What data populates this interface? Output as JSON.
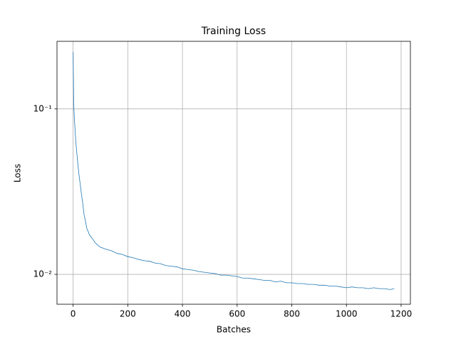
{
  "chart_data": {
    "type": "line",
    "title": "Training Loss",
    "xlabel": "Batches",
    "ylabel": "Loss",
    "x": [
      0,
      2,
      5,
      10,
      15,
      20,
      25,
      30,
      35,
      40,
      45,
      50,
      60,
      70,
      80,
      90,
      100,
      120,
      140,
      160,
      180,
      200,
      220,
      240,
      260,
      280,
      300,
      320,
      340,
      360,
      380,
      400,
      420,
      440,
      460,
      480,
      500,
      520,
      540,
      560,
      580,
      600,
      620,
      640,
      660,
      680,
      700,
      720,
      740,
      760,
      780,
      800,
      820,
      840,
      860,
      880,
      900,
      920,
      940,
      960,
      980,
      1000,
      1020,
      1040,
      1060,
      1080,
      1100,
      1120,
      1140,
      1160,
      1175
    ],
    "series": [
      {
        "name": "Loss",
        "color": "#1f77b4",
        "values": [
          0.22,
          0.108,
          0.085,
          0.063,
          0.051,
          0.042,
          0.036,
          0.031,
          0.027,
          0.023,
          0.021,
          0.019,
          0.0173,
          0.0165,
          0.0156,
          0.015,
          0.0146,
          0.0142,
          0.0139,
          0.0134,
          0.0132,
          0.0128,
          0.0126,
          0.0123,
          0.0121,
          0.012,
          0.0117,
          0.0116,
          0.0113,
          0.0112,
          0.0111,
          0.0108,
          0.0107,
          0.0106,
          0.0104,
          0.0103,
          0.0102,
          0.0101,
          0.0099,
          0.0099,
          0.0098,
          0.0097,
          0.0095,
          0.0095,
          0.0094,
          0.0093,
          0.0092,
          0.0092,
          0.009,
          0.0091,
          0.0089,
          0.0089,
          0.0088,
          0.0088,
          0.0087,
          0.0087,
          0.0086,
          0.0086,
          0.0085,
          0.0085,
          0.0084,
          0.0083,
          0.0084,
          0.0083,
          0.0083,
          0.0082,
          0.0083,
          0.0082,
          0.0082,
          0.0081,
          0.0082
        ]
      }
    ],
    "xlim": [
      -59,
      1234
    ],
    "xticks": [
      0,
      200,
      400,
      600,
      800,
      1000,
      1200
    ],
    "ylim": [
      0.0066,
      0.256
    ],
    "yscale": "log",
    "yticks": [
      {
        "value": 0.01,
        "label": "10⁻²"
      },
      {
        "value": 0.1,
        "label": "10⁻¹"
      }
    ],
    "grid": true
  }
}
